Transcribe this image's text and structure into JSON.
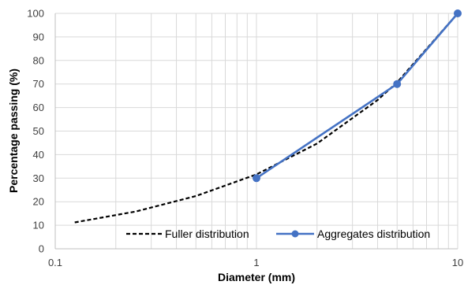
{
  "chart_data": {
    "type": "line",
    "xlabel": "Diameter (mm)",
    "ylabel": "Percentage passing (%)",
    "x_scale": "log",
    "xlim": [
      0.1,
      10
    ],
    "ylim": [
      0,
      100
    ],
    "x_ticks": [
      "0.1",
      "1",
      "10"
    ],
    "y_ticks": [
      "0",
      "10",
      "20",
      "30",
      "40",
      "50",
      "60",
      "70",
      "80",
      "90",
      "100"
    ],
    "grid": true,
    "legend_position": "bottom-right",
    "series": [
      {
        "name": "Fuller distribution",
        "style": "dashed",
        "color": "#000000",
        "points": [
          {
            "x": 0.125,
            "y": 11.2
          },
          {
            "x": 0.25,
            "y": 15.8
          },
          {
            "x": 0.5,
            "y": 22.4
          },
          {
            "x": 1,
            "y": 31.6
          },
          {
            "x": 2,
            "y": 44.7
          },
          {
            "x": 4,
            "y": 63.2
          },
          {
            "x": 5,
            "y": 70.7
          },
          {
            "x": 10,
            "y": 100
          }
        ]
      },
      {
        "name": "Aggregates distribution",
        "style": "solid-markers",
        "color": "#4472C4",
        "points": [
          {
            "x": 1,
            "y": 30
          },
          {
            "x": 5,
            "y": 70
          },
          {
            "x": 10,
            "y": 100
          }
        ]
      }
    ]
  }
}
